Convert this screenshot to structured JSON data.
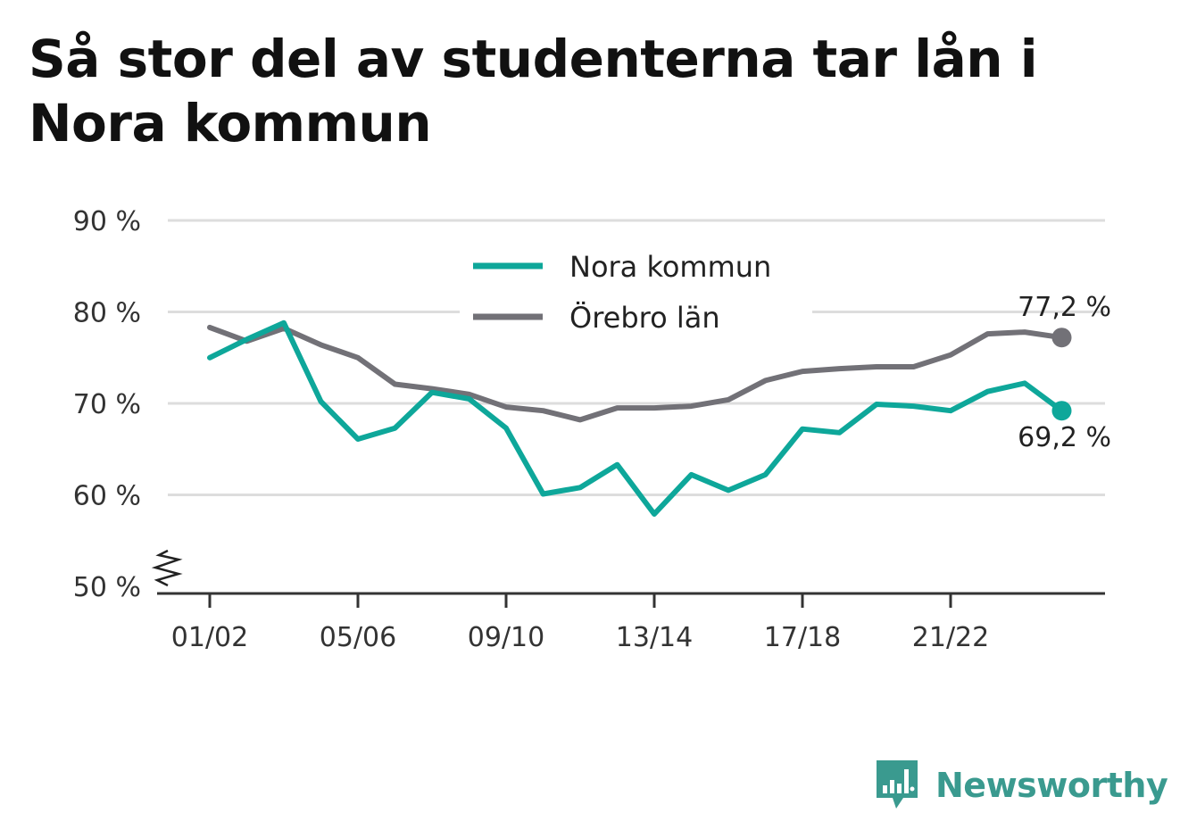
{
  "title": "Så stor del av studenterna tar lån i Nora kommun",
  "brand": {
    "name": "Newsworthy",
    "color": "#3a9a8f",
    "icon": "bar-chart-speech-bubble-icon"
  },
  "chart_data": {
    "type": "line",
    "title": "Så stor del av studenterna tar lån i Nora kommun",
    "xlabel": "",
    "ylabel": "",
    "x": [
      "01/02",
      "02/03",
      "03/04",
      "04/05",
      "05/06",
      "06/07",
      "07/08",
      "08/09",
      "09/10",
      "10/11",
      "11/12",
      "12/13",
      "13/14",
      "14/15",
      "15/16",
      "16/17",
      "17/18",
      "18/19",
      "19/20",
      "20/21",
      "21/22",
      "22/23",
      "23/24",
      "24/25"
    ],
    "x_tick_labels": [
      "01/02",
      "05/06",
      "09/10",
      "13/14",
      "17/18",
      "21/22"
    ],
    "ylim": [
      50,
      90
    ],
    "y_ticks": [
      50,
      60,
      70,
      80,
      90
    ],
    "y_tick_labels": [
      "50 %",
      "60 %",
      "70 %",
      "80 %",
      "90 %"
    ],
    "y_axis_break": true,
    "grid": true,
    "legend_position": "top-center",
    "series": [
      {
        "name": "Nora kommun",
        "color": "#0ea79a",
        "values": [
          75.0,
          77.0,
          78.8,
          70.2,
          66.1,
          67.3,
          71.2,
          70.5,
          67.3,
          60.1,
          60.8,
          63.3,
          57.9,
          62.2,
          60.5,
          62.2,
          67.2,
          66.8,
          69.9,
          69.7,
          69.2,
          71.3,
          72.2,
          69.2
        ],
        "end_label": "69,2 %"
      },
      {
        "name": "Örebro län",
        "color": "#727177",
        "values": [
          78.3,
          76.8,
          78.2,
          76.4,
          75.0,
          72.1,
          71.6,
          71.0,
          69.6,
          69.2,
          68.2,
          69.5,
          69.5,
          69.7,
          70.4,
          72.5,
          73.5,
          73.8,
          74.0,
          74.0,
          75.3,
          77.6,
          77.8,
          77.2
        ],
        "end_label": "77,2 %"
      }
    ]
  }
}
